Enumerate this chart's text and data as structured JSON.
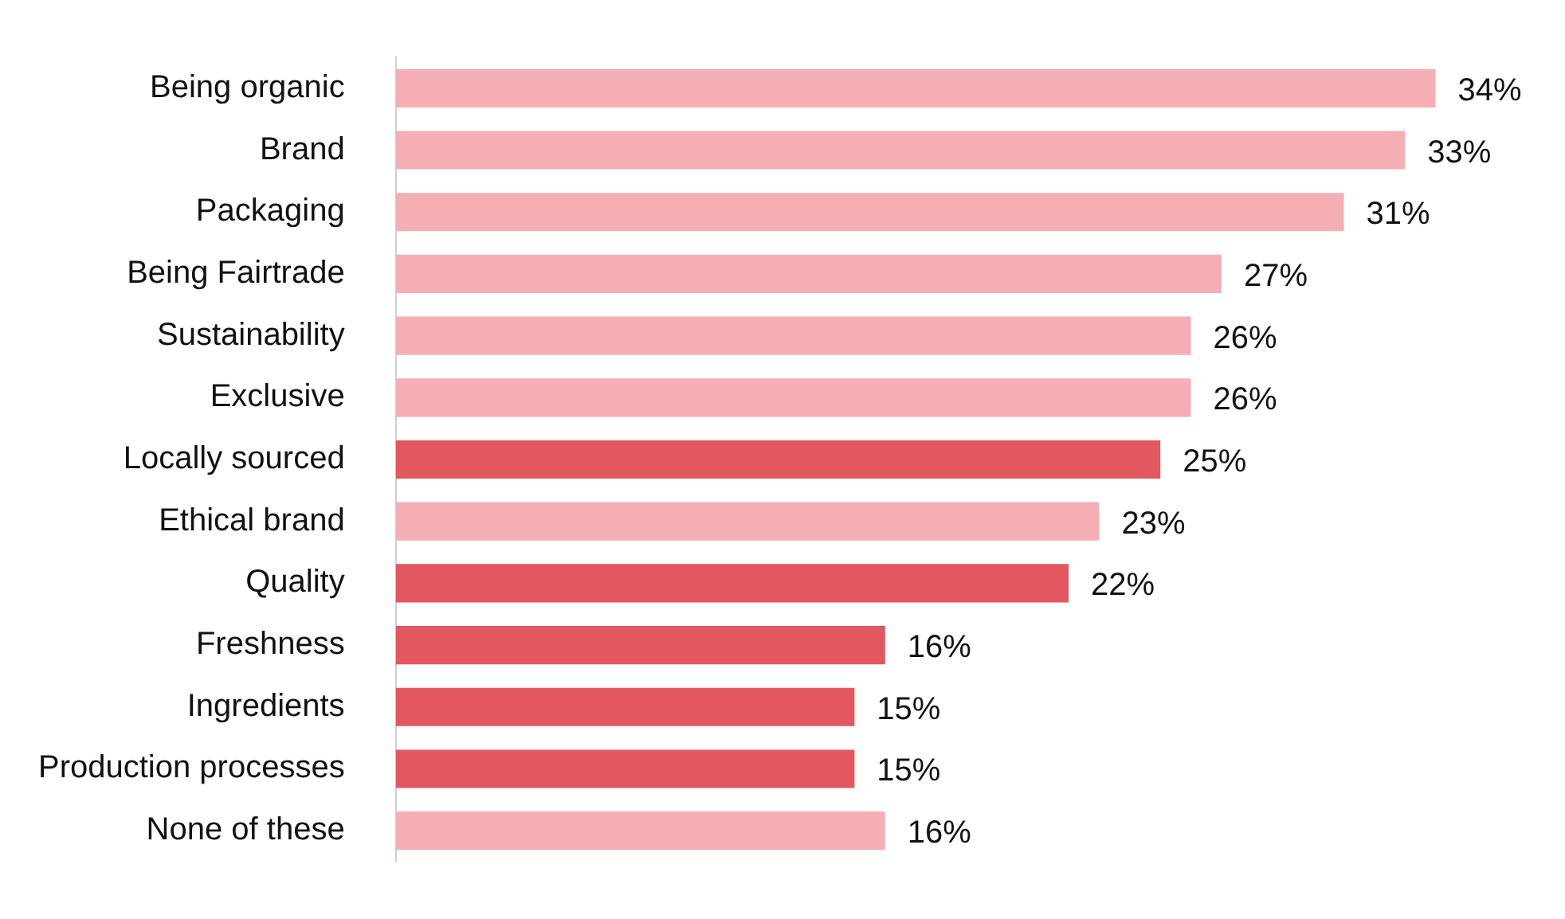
{
  "chart_data": {
    "type": "bar",
    "orientation": "horizontal",
    "categories": [
      "Being organic",
      "Brand",
      "Packaging",
      "Being Fairtrade",
      "Sustainability",
      "Exclusive",
      "Locally sourced",
      "Ethical brand",
      "Quality",
      "Freshness",
      "Ingredients",
      "Production processes",
      "None of these"
    ],
    "values": [
      34,
      33,
      31,
      27,
      26,
      26,
      25,
      23,
      22,
      16,
      15,
      15,
      16
    ],
    "value_labels": [
      "34%",
      "33%",
      "31%",
      "27%",
      "26%",
      "26%",
      "25%",
      "23%",
      "22%",
      "16%",
      "15%",
      "15%",
      "16%"
    ],
    "colors": [
      "#f5aeb4",
      "#f5aeb4",
      "#f5aeb4",
      "#f5aeb4",
      "#f5aeb4",
      "#f5aeb4",
      "#e3575e",
      "#f5aeb4",
      "#e3575e",
      "#e3575e",
      "#e3575e",
      "#e3575e",
      "#f5aeb4"
    ],
    "legend": false
  }
}
